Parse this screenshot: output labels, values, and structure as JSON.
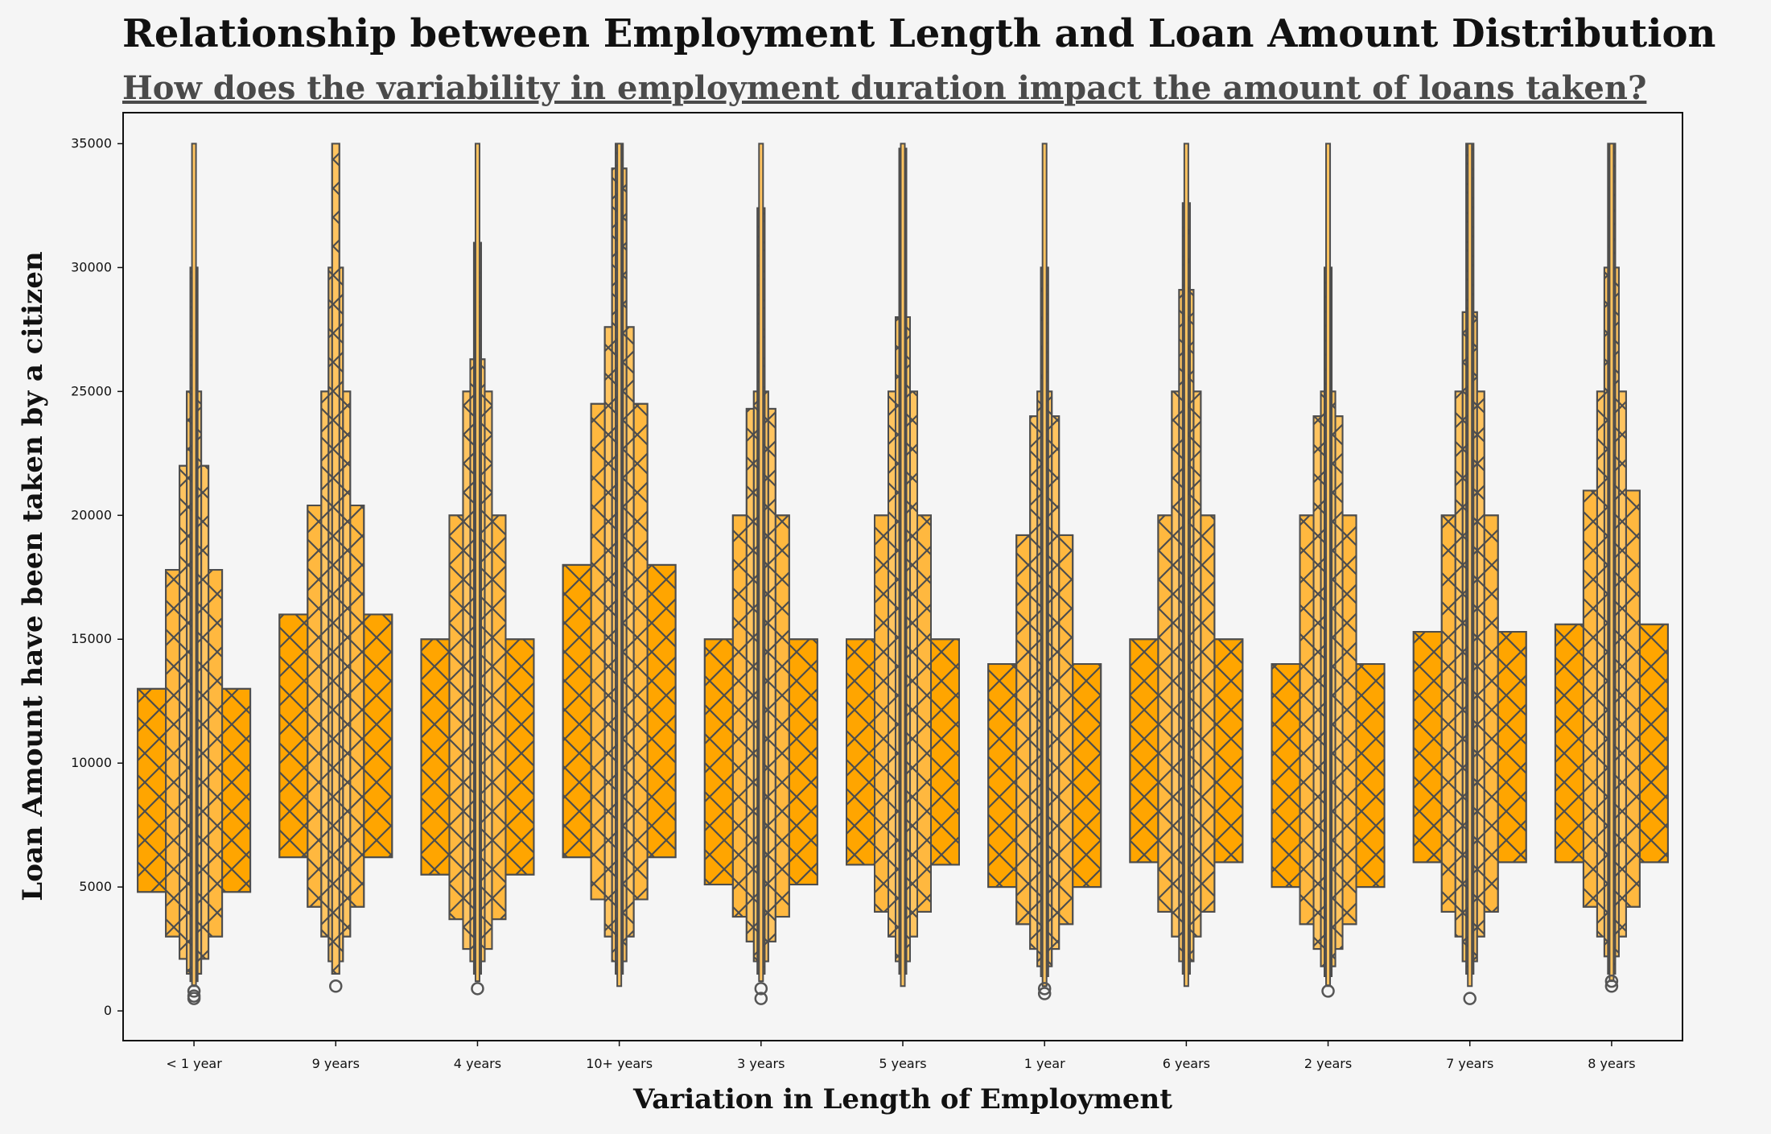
{
  "chart_data": {
    "type": "boxen",
    "title": "Relationship between Employment Length and Loan Amount Distribution",
    "subtitle": "How does the variability in employment duration impact the amount of loans taken?",
    "xlabel": "Variation in Length of Employment",
    "ylabel": "Loan Amount have been taken by a citizen",
    "ylim": [
      -1200,
      36250
    ],
    "yticks": [
      0,
      5000,
      10000,
      15000,
      20000,
      25000,
      30000,
      35000
    ],
    "fill_colors": [
      "#ffa500",
      "#ffb83f",
      "#ffc460"
    ],
    "edge_color": "#4d4d4d",
    "hatch": "x",
    "categories": [
      "< 1 year",
      "9 years",
      "4 years",
      "10+ years",
      "3 years",
      "5 years",
      "1 year",
      "6 years",
      "2 years",
      "7 years",
      "8 years"
    ],
    "series": [
      {
        "levels": [
          [
            4800,
            13000
          ],
          [
            3000,
            17800
          ],
          [
            2100,
            22000
          ],
          [
            1500,
            25000
          ],
          [
            1200,
            30000
          ],
          [
            1000,
            35000
          ]
        ],
        "outliers": [
          800,
          600,
          500
        ]
      },
      {
        "levels": [
          [
            6200,
            16000
          ],
          [
            4200,
            20400
          ],
          [
            3000,
            25000
          ],
          [
            2000,
            30000
          ],
          [
            1500,
            35000
          ]
        ],
        "outliers": [
          1000
        ]
      },
      {
        "levels": [
          [
            5500,
            15000
          ],
          [
            3700,
            20000
          ],
          [
            2500,
            25000
          ],
          [
            2000,
            26300
          ],
          [
            1500,
            31000
          ],
          [
            1200,
            35000
          ]
        ],
        "outliers": [
          900
        ]
      },
      {
        "levels": [
          [
            6200,
            18000
          ],
          [
            4500,
            24500
          ],
          [
            3000,
            27600
          ],
          [
            2000,
            34000
          ],
          [
            1500,
            35000
          ],
          [
            1000,
            35000
          ]
        ],
        "outliers": []
      },
      {
        "levels": [
          [
            5100,
            15000
          ],
          [
            3800,
            20000
          ],
          [
            2800,
            24300
          ],
          [
            2000,
            25000
          ],
          [
            1500,
            32400
          ],
          [
            1200,
            35000
          ]
        ],
        "outliers": [
          900,
          500
        ]
      },
      {
        "levels": [
          [
            5900,
            15000
          ],
          [
            4000,
            20000
          ],
          [
            3000,
            25000
          ],
          [
            2000,
            28000
          ],
          [
            1500,
            34800
          ],
          [
            1000,
            35000
          ]
        ],
        "outliers": []
      },
      {
        "levels": [
          [
            5000,
            14000
          ],
          [
            3500,
            19200
          ],
          [
            2500,
            24000
          ],
          [
            1800,
            25000
          ],
          [
            1400,
            30000
          ],
          [
            1000,
            35000
          ]
        ],
        "outliers": [
          900,
          700
        ]
      },
      {
        "levels": [
          [
            6000,
            15000
          ],
          [
            4000,
            20000
          ],
          [
            3000,
            25000
          ],
          [
            2000,
            29100
          ],
          [
            1500,
            32600
          ],
          [
            1000,
            35000
          ]
        ],
        "outliers": []
      },
      {
        "levels": [
          [
            5000,
            14000
          ],
          [
            3500,
            20000
          ],
          [
            2500,
            24000
          ],
          [
            1800,
            25000
          ],
          [
            1400,
            30000
          ],
          [
            1000,
            35000
          ]
        ],
        "outliers": [
          800
        ]
      },
      {
        "levels": [
          [
            6000,
            15300
          ],
          [
            4000,
            20000
          ],
          [
            3000,
            25000
          ],
          [
            2000,
            28200
          ],
          [
            1500,
            35000
          ],
          [
            1000,
            35000
          ]
        ],
        "outliers": [
          500
        ]
      },
      {
        "levels": [
          [
            6000,
            15600
          ],
          [
            4200,
            21000
          ],
          [
            3000,
            25000
          ],
          [
            2200,
            30000
          ],
          [
            1500,
            35000
          ],
          [
            1200,
            35000
          ]
        ],
        "outliers": [
          1200,
          1000
        ]
      }
    ]
  }
}
